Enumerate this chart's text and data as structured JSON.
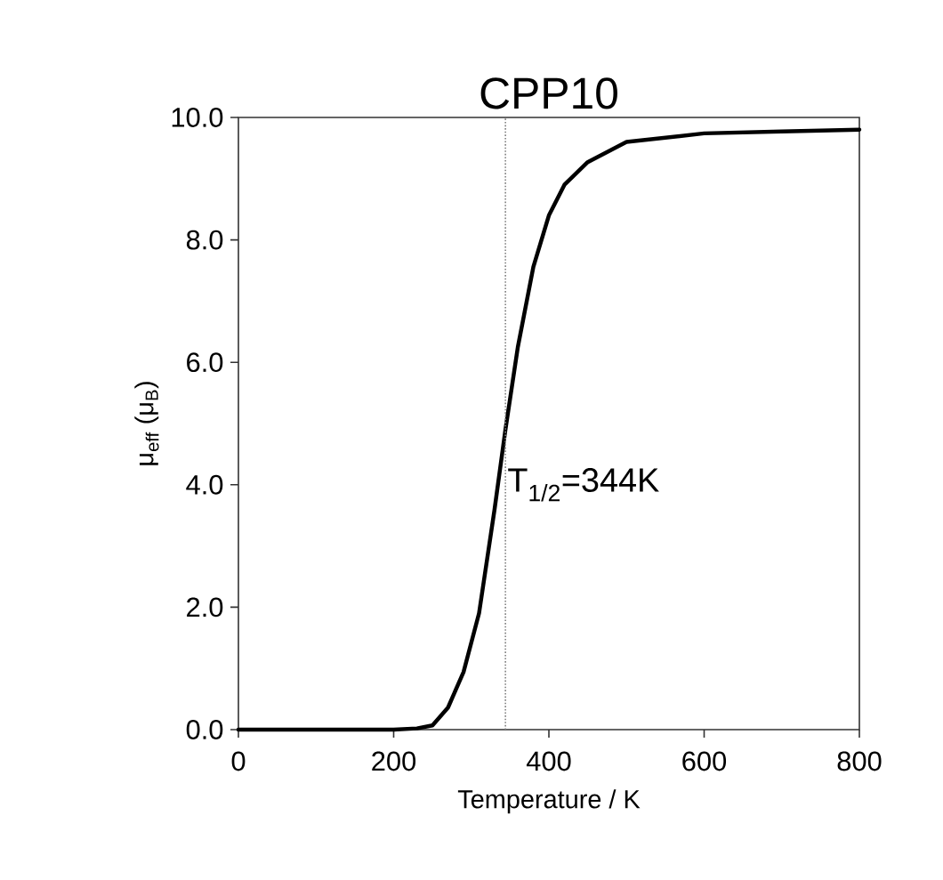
{
  "chart_data": {
    "type": "line",
    "title": "CPP10",
    "xlabel": "Temperature / K",
    "ylabel": "μ$_{eff}$ (μ$_{B}$)",
    "x": [
      0,
      100,
      200,
      230,
      250,
      270,
      290,
      310,
      330,
      344,
      360,
      380,
      400,
      420,
      450,
      500,
      600,
      700,
      800
    ],
    "series": [
      {
        "color": "#000000",
        "values": [
          0,
          0,
          0,
          0.02,
          0.07,
          0.36,
          0.94,
          1.9,
          3.6,
          4.9,
          6.25,
          7.56,
          8.4,
          8.9,
          9.27,
          9.6,
          9.74,
          9.77,
          9.8
        ]
      }
    ],
    "xlim": [
      0,
      800
    ],
    "ylim": [
      0,
      10
    ],
    "xticks": [
      0,
      200,
      400,
      600,
      800
    ],
    "yticks": [
      {
        "value": 0,
        "label": "0.0"
      },
      {
        "value": 2,
        "label": "2.0"
      },
      {
        "value": 4,
        "label": "4.0"
      },
      {
        "value": 6,
        "label": "6.0"
      },
      {
        "value": 8,
        "label": "8.0"
      },
      {
        "value": 10,
        "label": "10.0"
      }
    ],
    "ref_lines": [
      {
        "axis": "x",
        "value": 344,
        "label": "T$_{1/2}$=344K",
        "color": "#808080",
        "line_style": "dotted"
      }
    ],
    "grid": false,
    "marker": "none",
    "line_style": "solid"
  }
}
